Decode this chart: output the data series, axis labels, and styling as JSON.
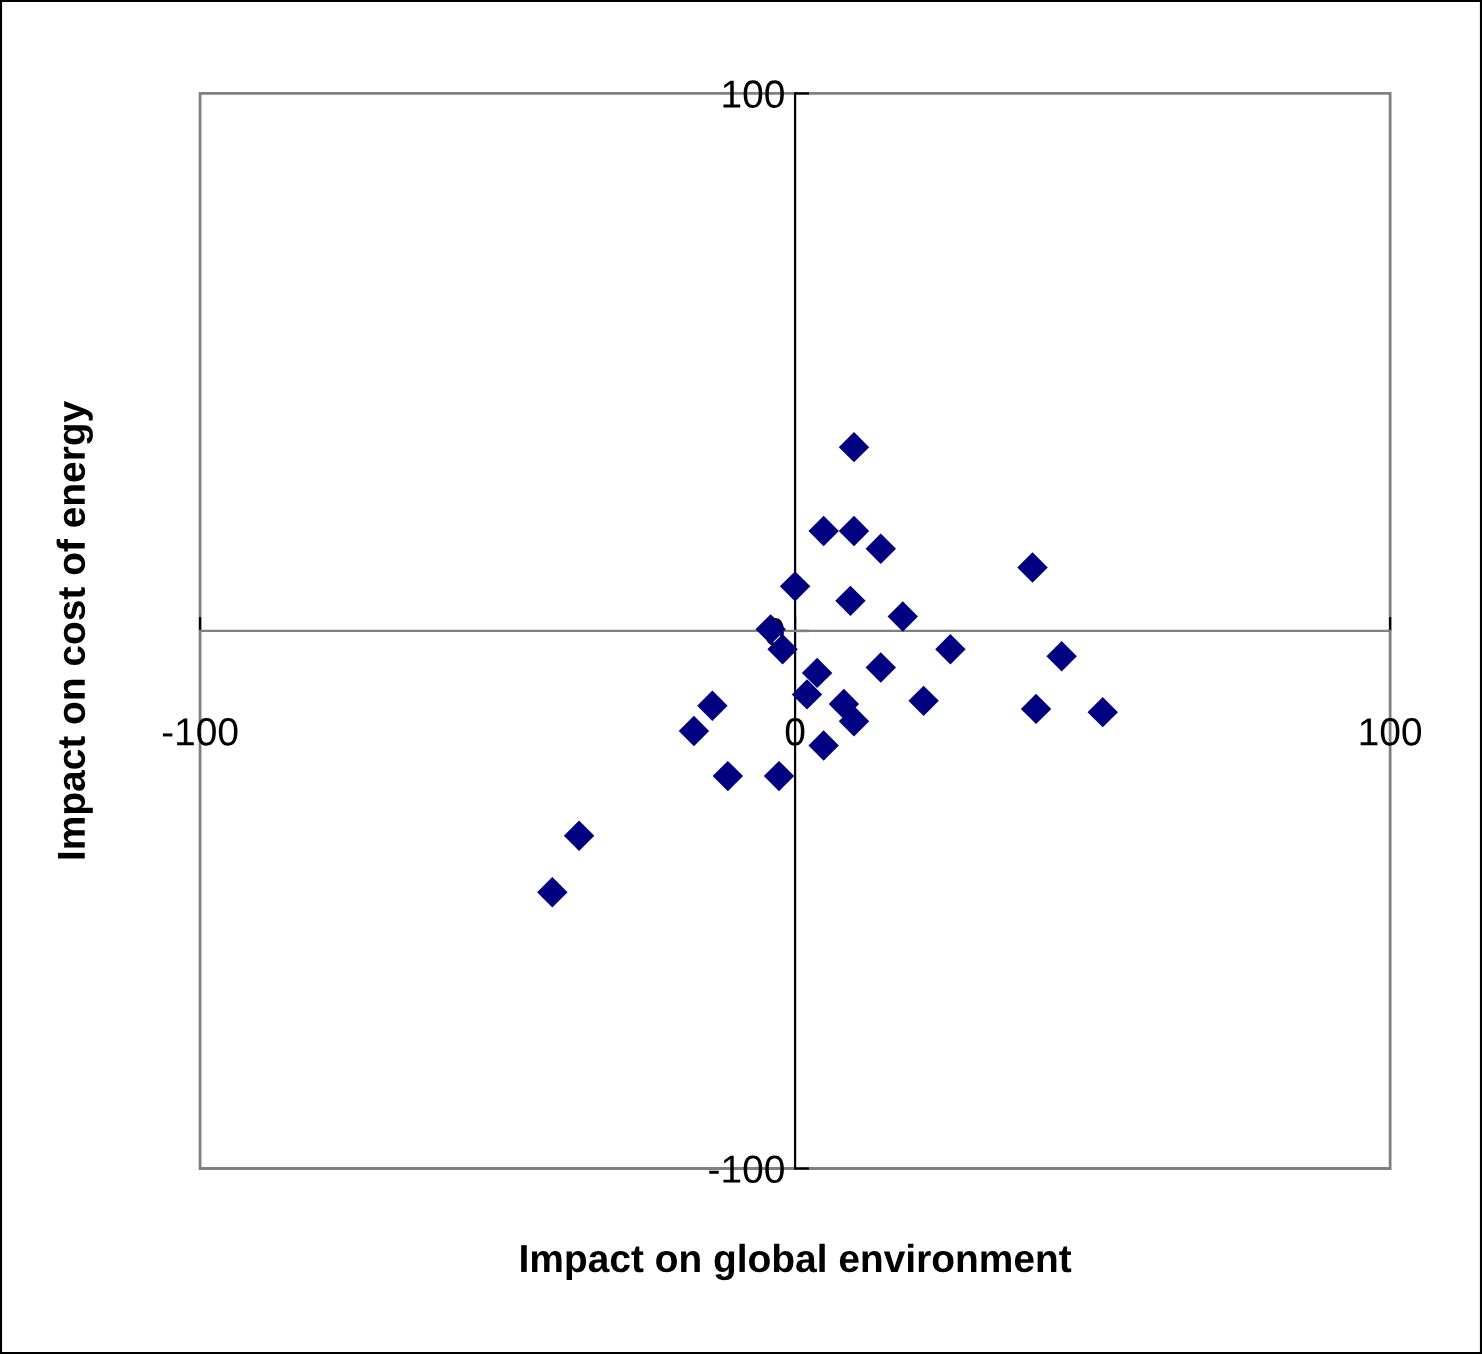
{
  "chart_data": {
    "type": "scatter",
    "xlabel": "Impact on global environment",
    "ylabel": "Impact on cost of energy",
    "xlim": [
      -100,
      100
    ],
    "ylim": [
      -100,
      100
    ],
    "xticks": [
      -100,
      0,
      100
    ],
    "yticks": [
      -100,
      0,
      100
    ],
    "grid": false,
    "marker": "diamond",
    "series": [
      {
        "color": "#000080",
        "x": [
          9.9,
          4.8,
          9.9,
          14.4,
          39.9,
          0,
          9.3,
          18.1,
          -4.1,
          -2.1,
          26.1,
          44.8,
          3.7,
          14.4,
          2.0,
          8.2,
          9.9,
          21.6,
          40.5,
          51.7,
          -13.9,
          -17.0,
          4.8,
          -11.3,
          -2.7,
          -36.3,
          -40.8
        ],
        "values": [
          34.2,
          18.6,
          18.6,
          15.3,
          11.8,
          8.3,
          5.6,
          2.7,
          0.3,
          -3.4,
          -3.4,
          -4.7,
          -7.8,
          -6.8,
          -11.8,
          -13.6,
          -16.8,
          -13.0,
          -14.5,
          -15.1,
          -13.9,
          -18.6,
          -21.3,
          -27.0,
          -27.0,
          -38.1,
          -48.6
        ]
      }
    ]
  }
}
